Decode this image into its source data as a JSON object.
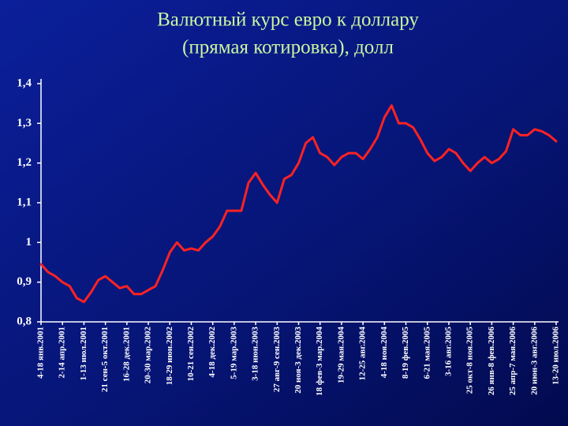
{
  "chart_data": {
    "type": "line",
    "title": [
      "Валютный курс евро к доллару",
      "(прямая котировка), долл"
    ],
    "categories": [
      "4-18 янв.2001",
      null,
      null,
      "2-14 апр.2001",
      null,
      null,
      "1-13 июл.2001",
      null,
      null,
      "21 сен-5 окт.2001",
      null,
      null,
      "16-28 дек.2001",
      null,
      null,
      "20-30 мар.2002",
      null,
      null,
      "18-29 июн.2002",
      null,
      null,
      "10-21 сен.2002",
      null,
      null,
      "4-18 дек.2002",
      null,
      null,
      "5-19 мар.2003",
      null,
      null,
      "3-18 июн.2003",
      null,
      null,
      "27 авг-9 сен.2003",
      null,
      null,
      "20 ноя-3 дек.2003",
      null,
      null,
      "18 фев-3 мар.2004",
      null,
      null,
      "19-29 мая.2004",
      null,
      null,
      "12-25 авг.2004",
      null,
      null,
      "4-18 ноя.2004",
      null,
      null,
      "8-19 фев.2005",
      null,
      null,
      "6-21 мая.2005",
      null,
      null,
      "3-16 авг.2005",
      null,
      null,
      "25 окт-8 ноя.2005",
      null,
      null,
      "26 янв-8 фев.2006",
      null,
      null,
      "25 апр-7 мая.2006",
      null,
      null,
      "20 июн-3 авг.2006",
      null,
      null,
      "13-20 июл.2006"
    ],
    "values": [
      0.945,
      0.925,
      0.915,
      0.9,
      0.89,
      0.86,
      0.85,
      0.875,
      0.905,
      0.915,
      0.9,
      0.885,
      0.89,
      0.87,
      0.87,
      0.88,
      0.89,
      0.93,
      0.975,
      1.0,
      0.98,
      0.985,
      0.98,
      1.0,
      1.015,
      1.04,
      1.08,
      1.08,
      1.08,
      1.15,
      1.175,
      1.145,
      1.12,
      1.1,
      1.16,
      1.17,
      1.2,
      1.25,
      1.265,
      1.225,
      1.215,
      1.195,
      1.215,
      1.225,
      1.225,
      1.21,
      1.235,
      1.265,
      1.315,
      1.345,
      1.3,
      1.3,
      1.29,
      1.26,
      1.225,
      1.205,
      1.215,
      1.235,
      1.225,
      1.2,
      1.18,
      1.2,
      1.215,
      1.2,
      1.21,
      1.23,
      1.285,
      1.27,
      1.27,
      1.285,
      1.28,
      1.27,
      1.255
    ],
    "color": "#ff2222",
    "ylim": [
      0.8,
      1.4
    ],
    "yticks": [
      {
        "value": 0.8,
        "label": "0,8"
      },
      {
        "value": 0.9,
        "label": "0,9"
      },
      1,
      {
        "value": 1.1,
        "label": "1,1"
      },
      {
        "value": 1.2,
        "label": "1,2"
      },
      {
        "value": 1.3,
        "label": "1,3"
      },
      {
        "value": 1.4,
        "label": "1,4"
      }
    ],
    "grid": false
  }
}
